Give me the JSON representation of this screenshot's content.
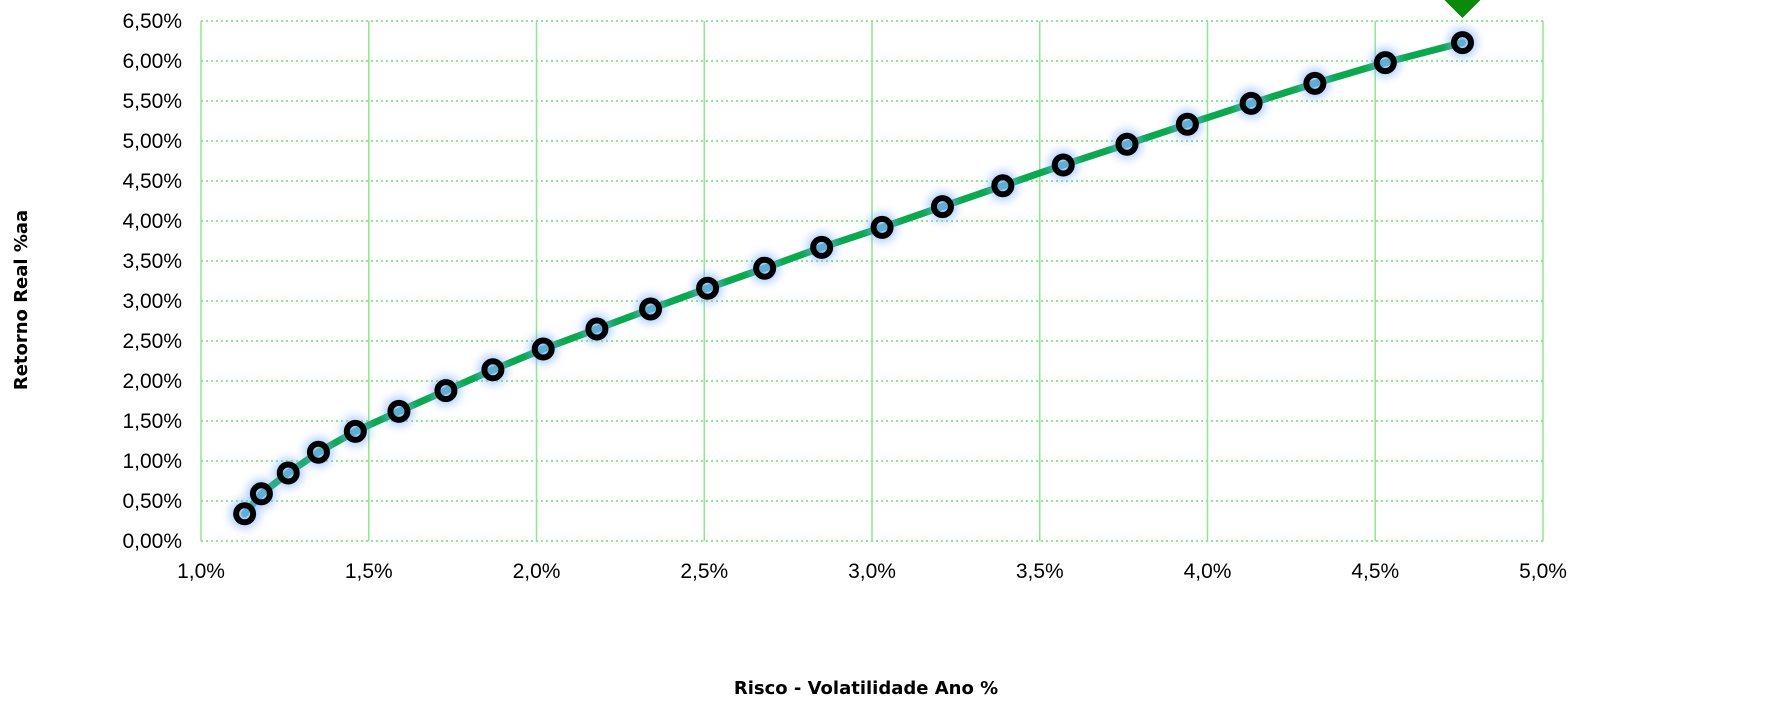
{
  "chart_data": {
    "type": "line",
    "title": "",
    "xlabel": "Risco - Volatilidade Ano %",
    "ylabel": "Retorno Real %aa",
    "xlim": [
      1.0,
      5.0
    ],
    "ylim": [
      0.0,
      6.5
    ],
    "x_ticks": [
      1.0,
      1.5,
      2.0,
      2.5,
      3.0,
      3.5,
      4.0,
      4.5,
      5.0
    ],
    "x_tick_labels": [
      "1,0%",
      "1,5%",
      "2,0%",
      "2,5%",
      "3,0%",
      "3,5%",
      "4,0%",
      "4,5%",
      "5,0%"
    ],
    "y_ticks": [
      0.0,
      0.5,
      1.0,
      1.5,
      2.0,
      2.5,
      3.0,
      3.5,
      4.0,
      4.5,
      5.0,
      5.5,
      6.0,
      6.5
    ],
    "y_tick_labels": [
      "0,00%",
      "0,50%",
      "1,00%",
      "1,50%",
      "2,00%",
      "2,50%",
      "3,00%",
      "3,50%",
      "4,00%",
      "4,50%",
      "5,00%",
      "5,50%",
      "6,00%",
      "6,50%"
    ],
    "grid": true,
    "legend": "none",
    "colors": {
      "line": "#0aa84f",
      "marker": "#000000",
      "marker_glow": "#7fb0ff",
      "grid": "#8ee88e",
      "highlight": "#0a8a0a"
    },
    "series": [
      {
        "x": [
          1.13,
          1.18,
          1.26,
          1.35,
          1.46,
          1.59,
          1.73,
          1.87,
          2.02,
          2.18,
          2.34,
          2.51,
          2.68,
          2.85,
          3.03,
          3.21,
          3.39,
          3.57,
          3.76,
          3.94,
          4.13,
          4.32,
          4.53,
          4.76
        ],
        "y": [
          0.34,
          0.59,
          0.85,
          1.11,
          1.37,
          1.62,
          1.88,
          2.14,
          2.4,
          2.65,
          2.9,
          3.16,
          3.41,
          3.67,
          3.92,
          4.18,
          4.44,
          4.7,
          4.96,
          5.21,
          5.47,
          5.72,
          5.98,
          6.23
        ]
      }
    ],
    "highlight_point": {
      "x": 4.76,
      "y": 6.23,
      "marker": "triangle-down"
    }
  }
}
